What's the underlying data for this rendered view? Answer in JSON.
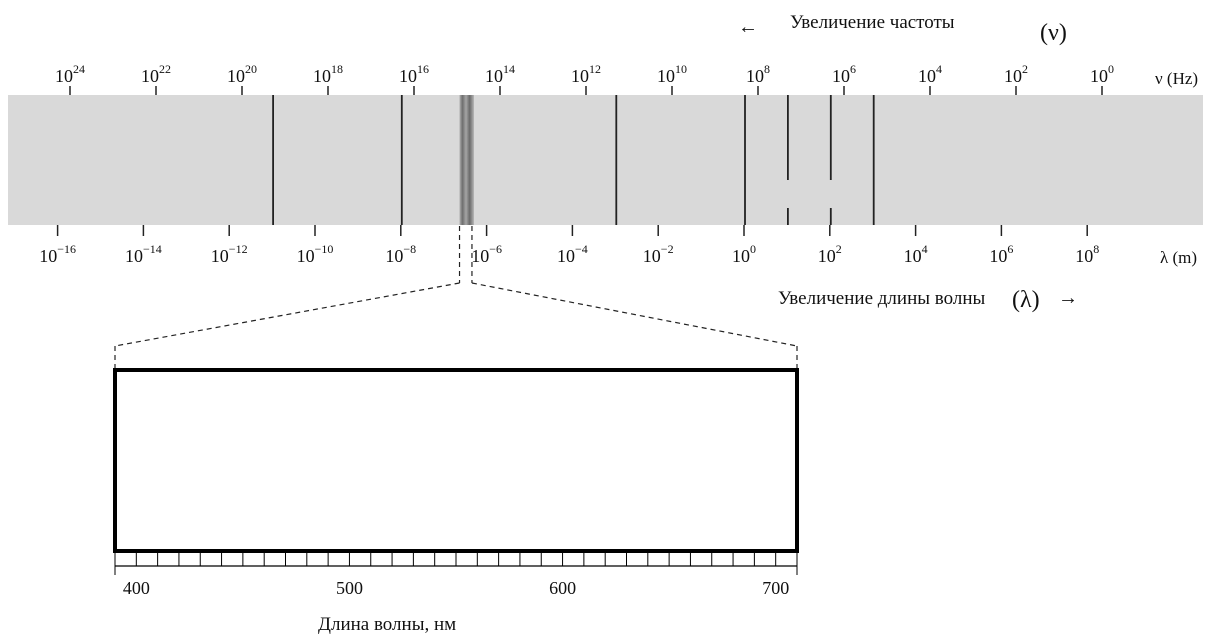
{
  "freq_header": {
    "arrow": "←",
    "text": "Увеличение частоты",
    "symbol": "(ν)"
  },
  "freq_axis": {
    "unit_label": "ν (Hz)",
    "ticks": [
      {
        "base": "10",
        "exp": "24"
      },
      {
        "base": "10",
        "exp": "22"
      },
      {
        "base": "10",
        "exp": "20"
      },
      {
        "base": "10",
        "exp": "18"
      },
      {
        "base": "10",
        "exp": "16"
      },
      {
        "base": "10",
        "exp": "14"
      },
      {
        "base": "10",
        "exp": "12"
      },
      {
        "base": "10",
        "exp": "10"
      },
      {
        "base": "10",
        "exp": "8"
      },
      {
        "base": "10",
        "exp": "6"
      },
      {
        "base": "10",
        "exp": "4"
      },
      {
        "base": "10",
        "exp": "2"
      },
      {
        "base": "10",
        "exp": "0"
      }
    ]
  },
  "wave_axis": {
    "unit_label": "λ (m)",
    "ticks": [
      {
        "base": "10",
        "exp": "−16"
      },
      {
        "base": "10",
        "exp": "−14"
      },
      {
        "base": "10",
        "exp": "−12"
      },
      {
        "base": "10",
        "exp": "−10"
      },
      {
        "base": "10",
        "exp": "−8"
      },
      {
        "base": "10",
        "exp": "−6"
      },
      {
        "base": "10",
        "exp": "−4"
      },
      {
        "base": "10",
        "exp": "−2"
      },
      {
        "base": "10",
        "exp": "0"
      },
      {
        "base": "10",
        "exp": "2"
      },
      {
        "base": "10",
        "exp": "4"
      },
      {
        "base": "10",
        "exp": "6"
      },
      {
        "base": "10",
        "exp": "8"
      }
    ]
  },
  "wave_header": {
    "text": "Увеличение длины волны",
    "symbol": "(λ)",
    "arrow": "→"
  },
  "band_lines_wavelength_m": [
    1e-11,
    1e-08,
    0.001,
    1,
    10,
    100,
    1000
  ],
  "visible_band_wavelength_m": [
    4e-07,
    7e-07
  ],
  "colors": {
    "strip": "#d9d9d9",
    "line": "#222222",
    "visible_band": "#8a8a8a"
  },
  "visible_panel": {
    "xlabel": "Длина волны, нм",
    "range_nm": [
      390,
      710
    ],
    "minor_tick_step_nm": 10,
    "tick_labels": [
      "400",
      "500",
      "600",
      "700"
    ]
  }
}
